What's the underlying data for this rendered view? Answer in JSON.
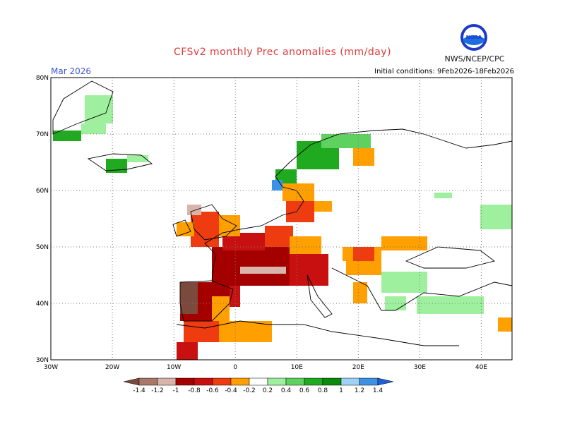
{
  "title": "CFSv2 monthly Prec anomalies (mm/day)",
  "month_label": "Mar 2026",
  "initial_conditions": "Initial conditions: 9Feb2026-18Feb2026",
  "agency": "NWS/NCEP/CPC",
  "logo_text": "NOAA",
  "map": {
    "lon_ticks": [
      "30W",
      "20W",
      "10W",
      "0",
      "10E",
      "20E",
      "30E",
      "40E"
    ],
    "lat_ticks": [
      "30N",
      "40N",
      "50N",
      "60N",
      "70N",
      "80N"
    ],
    "lon_range": [
      -30,
      45
    ],
    "lat_range": [
      30,
      80
    ],
    "grid": true
  },
  "legend": {
    "labels": [
      "-1.4",
      "-1.2",
      "-1",
      "-0.8",
      "-0.6",
      "-0.4",
      "-0.2",
      "0.2",
      "0.4",
      "0.6",
      "0.8",
      "1",
      "1.2",
      "1.4"
    ],
    "colors": [
      "#7b4a3c",
      "#a9786a",
      "#d8b4aa",
      "#a50000",
      "#c81010",
      "#ee3b10",
      "#ff9f00",
      "#ffffff",
      "#9ef09e",
      "#5fd15f",
      "#1faa1f",
      "#0b8a0b",
      "#9fd2f5",
      "#3c93e6",
      "#1f5fd8"
    ]
  }
}
